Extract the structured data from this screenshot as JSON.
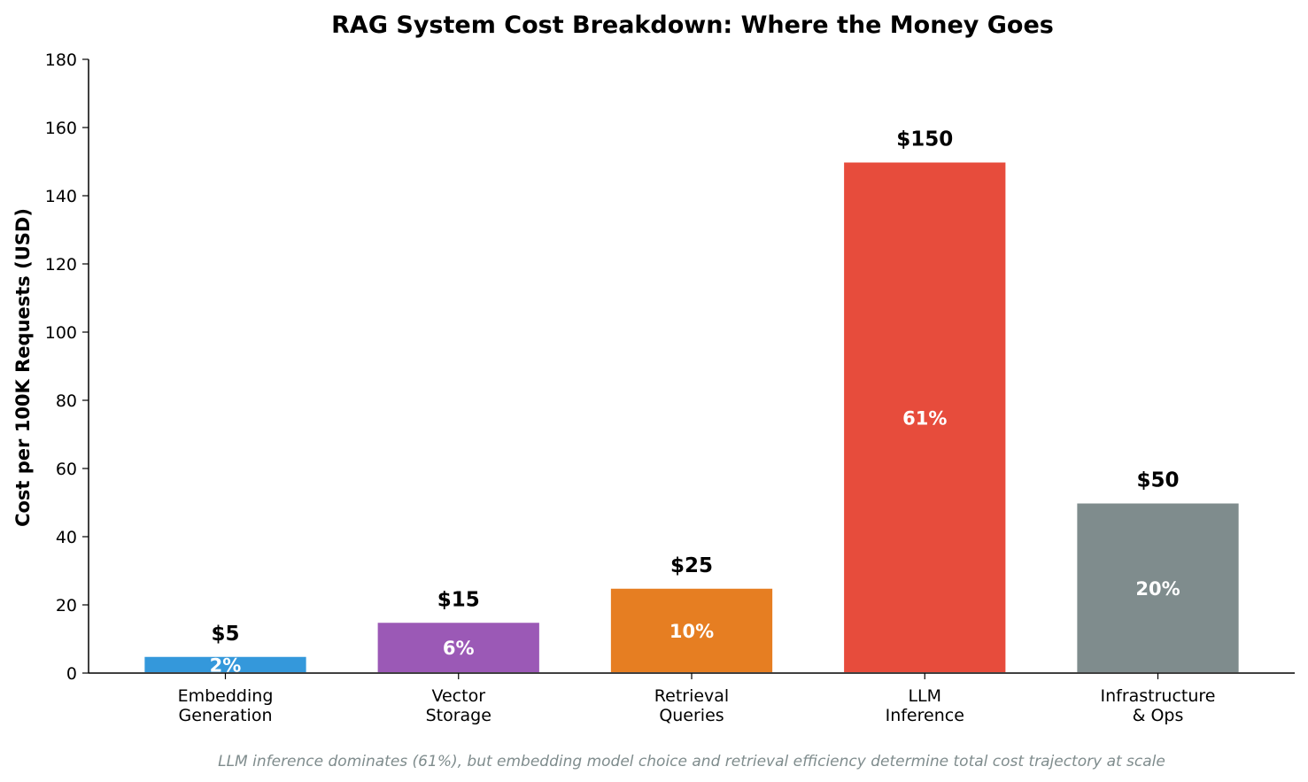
{
  "chart_data": {
    "type": "bar",
    "title": "RAG System Cost Breakdown: Where the Money Goes",
    "xlabel": "",
    "ylabel": "Cost per 100K Requests (USD)",
    "ylim": [
      0,
      180
    ],
    "yticks": [
      0,
      20,
      40,
      60,
      80,
      100,
      120,
      140,
      160,
      180
    ],
    "categories": [
      [
        "Embedding",
        "Generation"
      ],
      [
        "Vector",
        "Storage"
      ],
      [
        "Retrieval",
        "Queries"
      ],
      [
        "LLM",
        "Inference"
      ],
      [
        "Infrastructure",
        "& Ops"
      ]
    ],
    "values": [
      5,
      15,
      25,
      150,
      50
    ],
    "value_labels": [
      "$5",
      "$15",
      "$25",
      "$150",
      "$50"
    ],
    "percent_labels": [
      "2%",
      "6%",
      "10%",
      "61%",
      "20%"
    ],
    "colors": [
      "#3498db",
      "#9b59b6",
      "#e67e22",
      "#e74c3c",
      "#7f8c8d"
    ],
    "grid": false,
    "caption": "LLM inference dominates (61%), but embedding model choice and retrieval efficiency determine total cost trajectory at scale"
  }
}
